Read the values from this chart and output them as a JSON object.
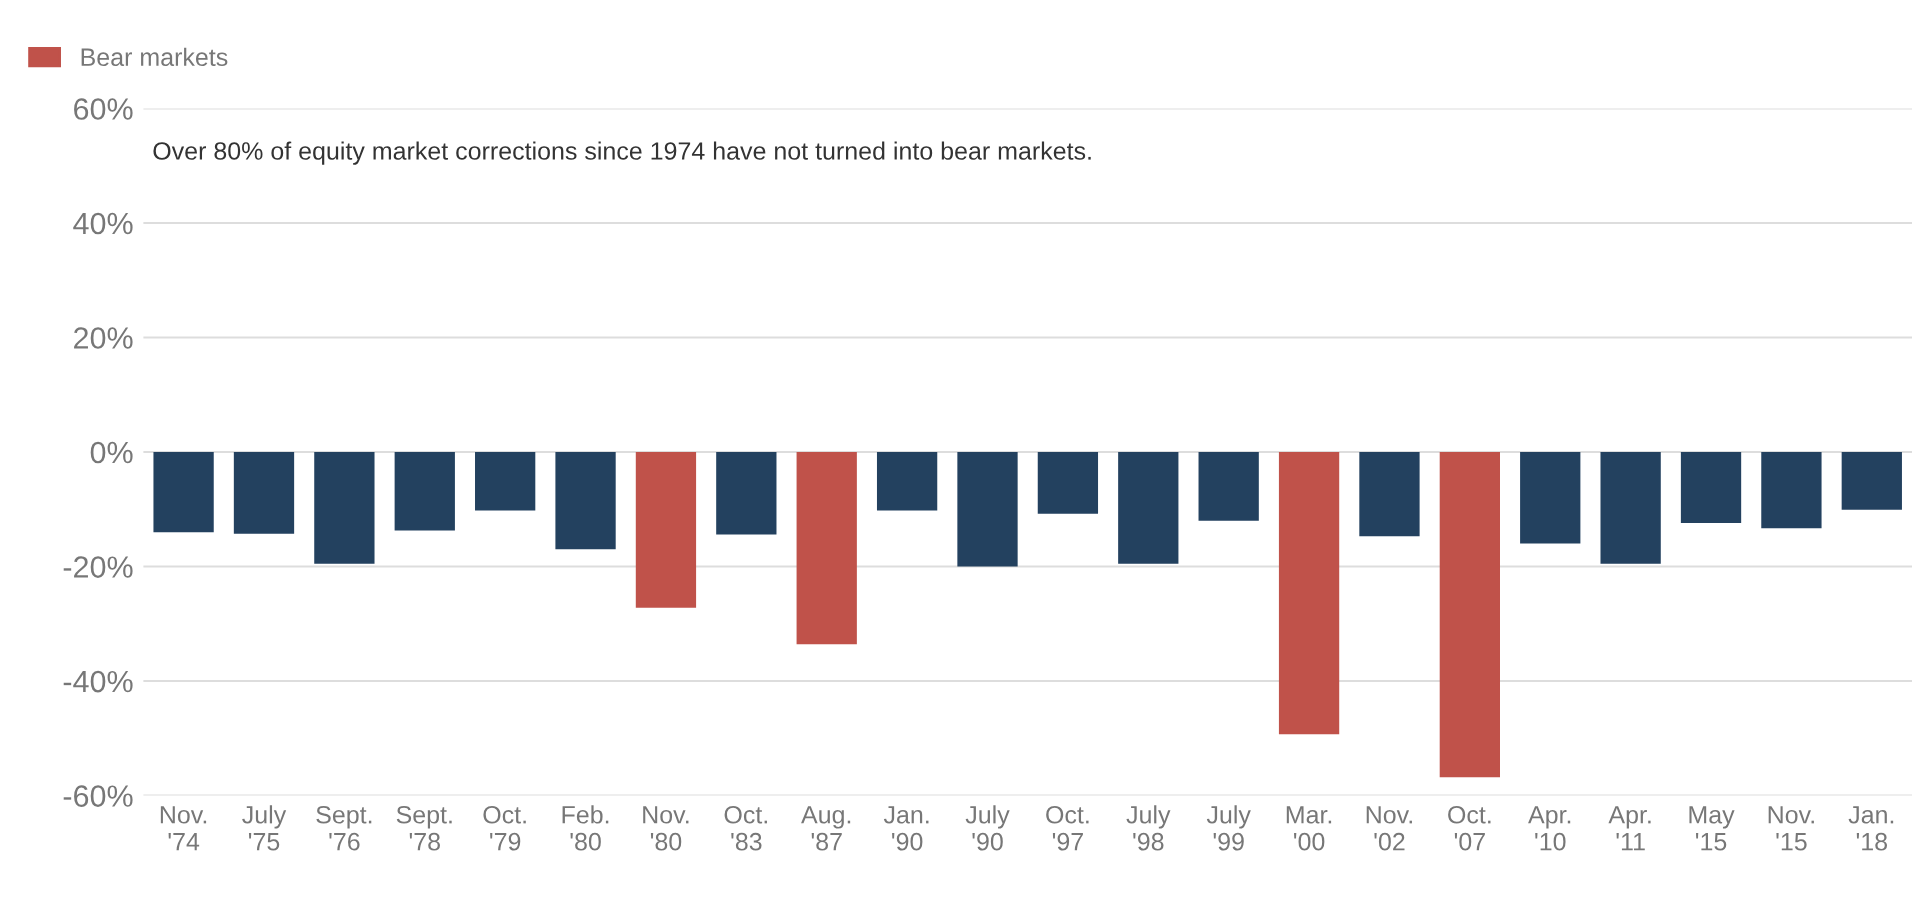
{
  "chart_data": {
    "type": "bar",
    "categories": [
      "Nov.\n'74",
      "July\n'75",
      "Sept.\n'76",
      "Sept.\n'78",
      "Oct.\n'79",
      "Feb.\n'80",
      "Nov.\n'80",
      "Oct.\n'83",
      "Aug.\n'87",
      "Jan.\n'90",
      "July\n'90",
      "Oct.\n'97",
      "July\n'98",
      "July\n'99",
      "Mar.\n'00",
      "Nov.\n'02",
      "Oct.\n'07",
      "Apr.\n'10",
      "Apr.\n'11",
      "May\n'15",
      "Nov.\n'15",
      "Jan.\n'18"
    ],
    "series": [
      {
        "color": "#23415f",
        "values": [
          -14,
          -14.3,
          -19.5,
          -13.7,
          -10.2,
          -17,
          null,
          -14.4,
          null,
          -10.2,
          -20,
          -10.8,
          -19.5,
          -12,
          null,
          -14.7,
          null,
          -16,
          -19.5,
          -12.4,
          -13.3,
          -10.1
        ]
      },
      {
        "name": "Bear markets",
        "color": "#c0524a",
        "values": [
          null,
          null,
          null,
          null,
          null,
          null,
          -27.2,
          null,
          -33.6,
          null,
          null,
          null,
          null,
          null,
          -49.3,
          null,
          -56.8,
          null,
          null,
          null,
          null,
          null
        ]
      }
    ],
    "ylim": [
      -60,
      60
    ],
    "yticks": [
      {
        "value": -60,
        "label": "-60%"
      },
      {
        "value": -40,
        "label": "-40%"
      },
      {
        "value": -20,
        "label": "-20%"
      },
      {
        "value": 0,
        "label": "0%"
      },
      {
        "value": 20,
        "label": "20%"
      },
      {
        "value": 40,
        "label": "40%"
      },
      {
        "value": 60,
        "label": "60%"
      }
    ],
    "grid": "y",
    "legend": "top left",
    "annotations": [
      "Over 80% of equity market corrections since 1974 have not turned into bear markets."
    ]
  }
}
